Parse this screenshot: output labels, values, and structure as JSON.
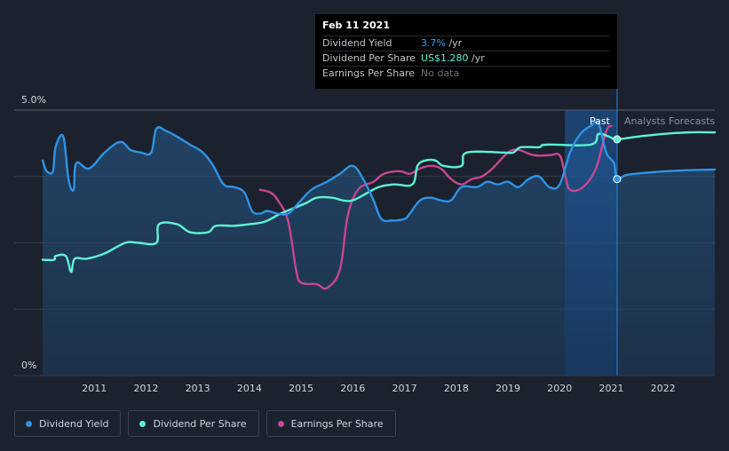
{
  "tooltip": {
    "date": "Feb 11 2021",
    "rows": [
      {
        "name": "Dividend Yield",
        "value": "3.7%",
        "unit": " /yr"
      },
      {
        "name": "Dividend Per Share",
        "value": "US$1.280",
        "unit": " /yr"
      },
      {
        "name": "Earnings Per Share",
        "value": "No data",
        "unit": ""
      }
    ]
  },
  "labels": {
    "past": "Past",
    "forecast": "Analysts Forecasts"
  },
  "legend": [
    {
      "label": "Dividend Yield",
      "color": "#2e93e6"
    },
    {
      "label": "Dividend Per Share",
      "color": "#5ef2d6"
    },
    {
      "label": "Earnings Per Share",
      "color": "#c74590"
    }
  ],
  "chart_data": {
    "type": "line",
    "x_ticks": [
      "2011",
      "2012",
      "2013",
      "2014",
      "2015",
      "2016",
      "2017",
      "2018",
      "2019",
      "2020",
      "2021",
      "2022"
    ],
    "y_ticks": [
      "5.0%",
      "0%"
    ],
    "ylim": [
      0,
      5.0
    ],
    "xlim": [
      2010.0,
      2023.0
    ],
    "highlight_date": 2021.11,
    "series": [
      {
        "name": "Dividend Yield",
        "color": "#2e93e6",
        "points": [
          [
            2010.0,
            4.05
          ],
          [
            2010.08,
            3.85
          ],
          [
            2010.2,
            3.85
          ],
          [
            2010.25,
            4.3
          ],
          [
            2010.4,
            4.5
          ],
          [
            2010.5,
            3.7
          ],
          [
            2010.6,
            3.5
          ],
          [
            2010.65,
            4.0
          ],
          [
            2010.9,
            3.9
          ],
          [
            2011.2,
            4.2
          ],
          [
            2011.5,
            4.4
          ],
          [
            2011.7,
            4.25
          ],
          [
            2011.9,
            4.2
          ],
          [
            2012.1,
            4.2
          ],
          [
            2012.2,
            4.65
          ],
          [
            2012.4,
            4.6
          ],
          [
            2012.6,
            4.5
          ],
          [
            2012.85,
            4.35
          ],
          [
            2013.1,
            4.2
          ],
          [
            2013.3,
            3.95
          ],
          [
            2013.5,
            3.6
          ],
          [
            2013.7,
            3.55
          ],
          [
            2013.9,
            3.45
          ],
          [
            2014.05,
            3.1
          ],
          [
            2014.2,
            3.05
          ],
          [
            2014.35,
            3.1
          ],
          [
            2014.55,
            3.05
          ],
          [
            2014.75,
            3.05
          ],
          [
            2014.95,
            3.25
          ],
          [
            2015.2,
            3.5
          ],
          [
            2015.5,
            3.65
          ],
          [
            2015.75,
            3.8
          ],
          [
            2016.0,
            3.95
          ],
          [
            2016.2,
            3.7
          ],
          [
            2016.4,
            3.3
          ],
          [
            2016.55,
            2.95
          ],
          [
            2016.75,
            2.92
          ],
          [
            2017.0,
            2.95
          ],
          [
            2017.1,
            3.05
          ],
          [
            2017.3,
            3.3
          ],
          [
            2017.5,
            3.35
          ],
          [
            2017.7,
            3.3
          ],
          [
            2017.9,
            3.3
          ],
          [
            2018.1,
            3.55
          ],
          [
            2018.4,
            3.55
          ],
          [
            2018.6,
            3.65
          ],
          [
            2018.8,
            3.6
          ],
          [
            2019.0,
            3.65
          ],
          [
            2019.2,
            3.55
          ],
          [
            2019.4,
            3.7
          ],
          [
            2019.6,
            3.75
          ],
          [
            2019.8,
            3.55
          ],
          [
            2020.0,
            3.6
          ],
          [
            2020.2,
            4.2
          ],
          [
            2020.4,
            4.55
          ],
          [
            2020.6,
            4.7
          ],
          [
            2020.75,
            4.75
          ],
          [
            2020.9,
            4.2
          ],
          [
            2021.05,
            4.0
          ],
          [
            2021.11,
            3.7
          ],
          [
            2021.3,
            3.78
          ],
          [
            2021.8,
            3.83
          ],
          [
            2022.3,
            3.86
          ],
          [
            2023.0,
            3.88
          ]
        ]
      },
      {
        "name": "Dividend Per Share",
        "color": "#5ef2d6",
        "points": [
          [
            2010.0,
            2.18
          ],
          [
            2010.22,
            2.18
          ],
          [
            2010.25,
            2.25
          ],
          [
            2010.45,
            2.25
          ],
          [
            2010.55,
            1.95
          ],
          [
            2010.62,
            2.2
          ],
          [
            2010.85,
            2.2
          ],
          [
            2011.2,
            2.3
          ],
          [
            2011.6,
            2.5
          ],
          [
            2011.85,
            2.5
          ],
          [
            2012.2,
            2.5
          ],
          [
            2012.25,
            2.85
          ],
          [
            2012.6,
            2.85
          ],
          [
            2012.85,
            2.7
          ],
          [
            2013.2,
            2.7
          ],
          [
            2013.35,
            2.82
          ],
          [
            2013.7,
            2.82
          ],
          [
            2014.0,
            2.85
          ],
          [
            2014.3,
            2.9
          ],
          [
            2014.6,
            3.05
          ],
          [
            2014.85,
            3.15
          ],
          [
            2015.1,
            3.25
          ],
          [
            2015.3,
            3.35
          ],
          [
            2015.6,
            3.35
          ],
          [
            2015.8,
            3.3
          ],
          [
            2016.0,
            3.3
          ],
          [
            2016.3,
            3.45
          ],
          [
            2016.5,
            3.55
          ],
          [
            2016.8,
            3.6
          ],
          [
            2017.15,
            3.6
          ],
          [
            2017.25,
            3.95
          ],
          [
            2017.4,
            4.05
          ],
          [
            2017.6,
            4.05
          ],
          [
            2017.75,
            3.95
          ],
          [
            2018.1,
            3.95
          ],
          [
            2018.2,
            4.2
          ],
          [
            2018.9,
            4.2
          ],
          [
            2019.1,
            4.2
          ],
          [
            2019.25,
            4.3
          ],
          [
            2019.6,
            4.3
          ],
          [
            2019.75,
            4.35
          ],
          [
            2020.6,
            4.35
          ],
          [
            2020.75,
            4.55
          ],
          [
            2020.95,
            4.5
          ],
          [
            2021.11,
            4.45
          ],
          [
            2021.5,
            4.5
          ],
          [
            2022.0,
            4.55
          ],
          [
            2022.5,
            4.58
          ],
          [
            2023.0,
            4.58
          ]
        ]
      },
      {
        "name": "Earnings Per Share",
        "color": "#c74590",
        "points": [
          [
            2014.2,
            3.5
          ],
          [
            2014.4,
            3.45
          ],
          [
            2014.55,
            3.3
          ],
          [
            2014.75,
            2.9
          ],
          [
            2014.9,
            2.0
          ],
          [
            2015.0,
            1.75
          ],
          [
            2015.3,
            1.72
          ],
          [
            2015.5,
            1.65
          ],
          [
            2015.75,
            2.0
          ],
          [
            2015.9,
            3.0
          ],
          [
            2016.1,
            3.5
          ],
          [
            2016.4,
            3.65
          ],
          [
            2016.6,
            3.8
          ],
          [
            2016.9,
            3.85
          ],
          [
            2017.1,
            3.8
          ],
          [
            2017.3,
            3.9
          ],
          [
            2017.5,
            3.95
          ],
          [
            2017.7,
            3.9
          ],
          [
            2017.9,
            3.7
          ],
          [
            2018.1,
            3.6
          ],
          [
            2018.3,
            3.7
          ],
          [
            2018.5,
            3.75
          ],
          [
            2018.7,
            3.9
          ],
          [
            2019.0,
            4.2
          ],
          [
            2019.2,
            4.25
          ],
          [
            2019.5,
            4.15
          ],
          [
            2019.8,
            4.15
          ],
          [
            2020.0,
            4.15
          ],
          [
            2020.1,
            3.8
          ],
          [
            2020.2,
            3.5
          ],
          [
            2020.45,
            3.55
          ],
          [
            2020.7,
            3.9
          ],
          [
            2020.9,
            4.6
          ],
          [
            2021.0,
            4.7
          ]
        ]
      }
    ]
  }
}
